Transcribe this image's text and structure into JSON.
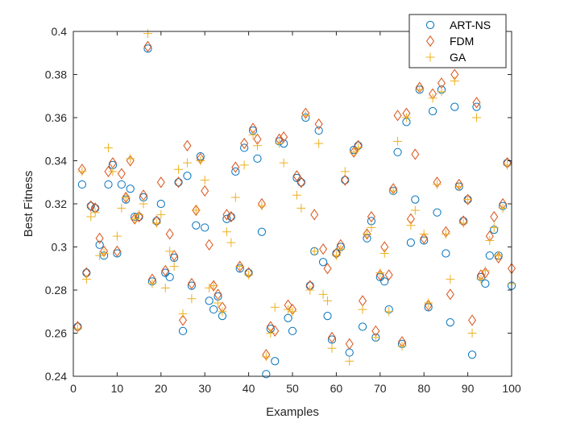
{
  "chart_data": {
    "type": "scatter",
    "xlabel": "Examples",
    "ylabel": "Best Fitness",
    "xlim": [
      0,
      100
    ],
    "ylim": [
      0.24,
      0.4
    ],
    "x_ticks": [
      0,
      10,
      20,
      30,
      40,
      50,
      60,
      70,
      80,
      90,
      100
    ],
    "y_ticks": [
      0.24,
      0.26,
      0.28,
      0.3,
      0.32,
      0.34,
      0.36,
      0.38,
      0.4
    ],
    "x_tick_labels": [
      "0",
      "10",
      "20",
      "30",
      "40",
      "50",
      "60",
      "70",
      "80",
      "90",
      "100"
    ],
    "y_tick_labels": [
      "0.24",
      "0.26",
      "0.28",
      "0.3",
      "0.32",
      "0.34",
      "0.36",
      "0.38",
      "0.4"
    ],
    "grid": false,
    "legend_position": "top-right",
    "series": [
      {
        "name": "ART-NS",
        "marker": "circle",
        "color": "#0072BD",
        "x": [
          1,
          2,
          3,
          4,
          5,
          6,
          7,
          8,
          9,
          10,
          11,
          12,
          13,
          14,
          15,
          16,
          17,
          18,
          19,
          20,
          21,
          22,
          23,
          24,
          25,
          26,
          27,
          28,
          29,
          30,
          31,
          32,
          33,
          34,
          35,
          36,
          37,
          38,
          39,
          40,
          41,
          42,
          43,
          44,
          45,
          46,
          47,
          48,
          49,
          50,
          51,
          52,
          53,
          54,
          55,
          56,
          57,
          58,
          59,
          60,
          61,
          62,
          63,
          64,
          65,
          66,
          67,
          68,
          69,
          70,
          71,
          72,
          73,
          74,
          75,
          76,
          77,
          78,
          79,
          80,
          81,
          82,
          83,
          84,
          85,
          86,
          87,
          88,
          89,
          90,
          91,
          92,
          93,
          94,
          95,
          96,
          97,
          98,
          99,
          100
        ],
        "values": [
          0.263,
          0.329,
          0.288,
          0.319,
          0.318,
          0.301,
          0.296,
          0.329,
          0.338,
          0.297,
          0.329,
          0.322,
          0.327,
          0.314,
          0.314,
          0.323,
          0.392,
          0.284,
          0.312,
          0.32,
          0.288,
          0.286,
          0.295,
          0.33,
          0.261,
          0.333,
          0.282,
          0.31,
          0.342,
          0.309,
          0.275,
          0.271,
          0.277,
          0.268,
          0.313,
          0.314,
          0.335,
          0.29,
          0.346,
          0.288,
          0.354,
          0.341,
          0.307,
          0.241,
          0.262,
          0.247,
          0.349,
          0.348,
          0.267,
          0.261,
          0.332,
          0.33,
          0.36,
          0.282,
          0.298,
          0.354,
          0.293,
          0.268,
          0.257,
          0.297,
          0.3,
          0.331,
          0.251,
          0.345,
          0.347,
          0.263,
          0.304,
          0.312,
          0.258,
          0.286,
          0.284,
          0.271,
          0.326,
          0.344,
          0.255,
          0.358,
          0.302,
          0.322,
          0.373,
          0.303,
          0.272,
          0.363,
          0.316,
          0.373,
          0.297,
          0.265,
          0.365,
          0.328,
          0.312,
          0.322,
          0.25,
          0.365,
          0.286,
          0.283,
          0.296,
          0.308,
          0.296,
          0.319,
          0.339,
          0.282
        ]
      },
      {
        "name": "FDM",
        "marker": "diamond",
        "color": "#D95319",
        "x": [
          1,
          2,
          3,
          4,
          5,
          6,
          7,
          8,
          9,
          10,
          11,
          12,
          13,
          14,
          15,
          16,
          17,
          18,
          19,
          20,
          21,
          22,
          23,
          24,
          25,
          26,
          27,
          28,
          29,
          30,
          31,
          32,
          33,
          34,
          35,
          36,
          37,
          38,
          39,
          40,
          41,
          42,
          43,
          44,
          45,
          46,
          47,
          48,
          49,
          50,
          51,
          52,
          53,
          54,
          55,
          56,
          57,
          58,
          59,
          60,
          61,
          62,
          63,
          64,
          65,
          66,
          67,
          68,
          69,
          70,
          71,
          72,
          73,
          74,
          75,
          76,
          77,
          78,
          79,
          80,
          81,
          82,
          83,
          84,
          85,
          86,
          87,
          88,
          89,
          90,
          91,
          92,
          93,
          94,
          95,
          96,
          97,
          98,
          99,
          100
        ],
        "values": [
          0.263,
          0.336,
          0.288,
          0.319,
          0.318,
          0.304,
          0.298,
          0.335,
          0.339,
          0.298,
          0.334,
          0.323,
          0.34,
          0.313,
          0.314,
          0.324,
          0.393,
          0.285,
          0.312,
          0.33,
          0.289,
          0.306,
          0.296,
          0.33,
          0.266,
          0.347,
          0.283,
          0.317,
          0.341,
          0.326,
          0.301,
          0.282,
          0.278,
          0.272,
          0.315,
          0.314,
          0.337,
          0.291,
          0.348,
          0.288,
          0.355,
          0.35,
          0.32,
          0.25,
          0.263,
          0.261,
          0.35,
          0.351,
          0.273,
          0.271,
          0.333,
          0.33,
          0.362,
          0.282,
          0.315,
          0.357,
          0.299,
          0.29,
          0.258,
          0.297,
          0.301,
          0.331,
          0.255,
          0.344,
          0.347,
          0.275,
          0.306,
          0.314,
          0.261,
          0.287,
          0.3,
          0.287,
          0.327,
          0.361,
          0.256,
          0.362,
          0.313,
          0.343,
          0.374,
          0.304,
          0.273,
          0.371,
          0.33,
          0.376,
          0.307,
          0.278,
          0.38,
          0.329,
          0.312,
          0.322,
          0.266,
          0.367,
          0.287,
          0.288,
          0.305,
          0.314,
          0.295,
          0.32,
          0.339,
          0.29
        ]
      },
      {
        "name": "GA",
        "marker": "plus",
        "color": "#EDB120",
        "x": [
          1,
          2,
          3,
          4,
          5,
          6,
          7,
          8,
          9,
          10,
          11,
          12,
          13,
          14,
          15,
          16,
          17,
          18,
          19,
          20,
          21,
          22,
          23,
          24,
          25,
          26,
          27,
          28,
          29,
          30,
          31,
          32,
          33,
          34,
          35,
          36,
          37,
          38,
          39,
          40,
          41,
          42,
          43,
          44,
          45,
          46,
          47,
          48,
          49,
          50,
          51,
          52,
          53,
          54,
          55,
          56,
          57,
          58,
          59,
          60,
          61,
          62,
          63,
          64,
          65,
          66,
          67,
          68,
          69,
          70,
          71,
          72,
          73,
          74,
          75,
          76,
          77,
          78,
          79,
          80,
          81,
          82,
          83,
          84,
          85,
          86,
          87,
          88,
          89,
          90,
          91,
          92,
          93,
          94,
          95,
          96,
          97,
          98,
          99,
          100
        ],
        "values": [
          0.262,
          0.335,
          0.285,
          0.314,
          0.316,
          0.296,
          0.297,
          0.346,
          0.335,
          0.305,
          0.318,
          0.323,
          0.341,
          0.313,
          0.315,
          0.32,
          0.399,
          0.283,
          0.311,
          0.315,
          0.281,
          0.298,
          0.291,
          0.336,
          0.269,
          0.339,
          0.276,
          0.317,
          0.34,
          0.331,
          0.281,
          0.282,
          0.274,
          0.27,
          0.307,
          0.302,
          0.323,
          0.291,
          0.338,
          0.287,
          0.352,
          0.347,
          0.319,
          0.249,
          0.26,
          0.272,
          0.348,
          0.339,
          0.271,
          0.27,
          0.324,
          0.318,
          0.361,
          0.28,
          0.298,
          0.348,
          0.278,
          0.275,
          0.253,
          0.296,
          0.299,
          0.335,
          0.247,
          0.344,
          0.346,
          0.271,
          0.306,
          0.309,
          0.258,
          0.288,
          0.297,
          0.27,
          0.326,
          0.349,
          0.254,
          0.36,
          0.31,
          0.317,
          0.373,
          0.306,
          0.274,
          0.369,
          0.329,
          0.372,
          0.306,
          0.285,
          0.377,
          0.328,
          0.311,
          0.322,
          0.26,
          0.36,
          0.285,
          0.289,
          0.303,
          0.309,
          0.296,
          0.318,
          0.338,
          0.283
        ]
      }
    ]
  }
}
